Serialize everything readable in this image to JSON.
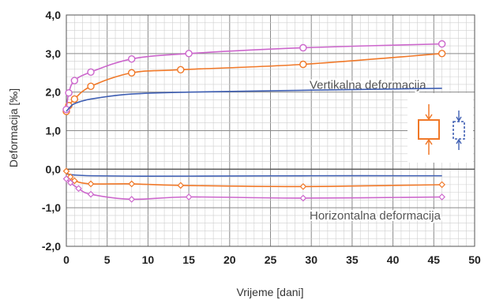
{
  "chart_data": {
    "type": "line",
    "title": "",
    "xlabel": "Vrijeme [dani]",
    "ylabel": "Deformacija [‰]",
    "xlim": [
      0,
      50
    ],
    "ylim": [
      -2.0,
      4.0
    ],
    "x_ticks": [
      "0",
      "5",
      "10",
      "15",
      "20",
      "25",
      "30",
      "35",
      "40",
      "45",
      "50"
    ],
    "y_ticks": [
      "4,0",
      "3,0",
      "2,0",
      "1,0",
      "0,0",
      "-1,0",
      "-2,0"
    ],
    "grid": true,
    "annotations": [
      "Vertikalna deformacija",
      "Horizontalna deformacija"
    ],
    "colors": {
      "orange": "#f07828",
      "pink": "#cc66cc",
      "blue": "#3f5fb3"
    },
    "series": [
      {
        "color": "orange",
        "marker": "circle",
        "smooth": true,
        "x": [
          0,
          0.3,
          1,
          3,
          8,
          14,
          29,
          46
        ],
        "y": [
          1.5,
          1.65,
          1.82,
          2.15,
          2.5,
          2.58,
          2.72,
          3.0
        ]
      },
      {
        "color": "pink",
        "marker": "circle",
        "smooth": true,
        "x": [
          0,
          0.3,
          1,
          3,
          8,
          15,
          29,
          46
        ],
        "y": [
          1.55,
          1.98,
          2.3,
          2.52,
          2.86,
          3.0,
          3.15,
          3.25
        ]
      },
      {
        "color": "blue",
        "marker": "none",
        "smooth": true,
        "x": [
          0,
          0.5,
          1,
          3,
          8,
          15,
          30,
          46
        ],
        "y": [
          1.5,
          1.62,
          1.7,
          1.82,
          1.95,
          2.0,
          2.05,
          2.1
        ]
      },
      {
        "color": "blue",
        "marker": "none",
        "smooth": true,
        "x": [
          0,
          1,
          3,
          8,
          15,
          30,
          46
        ],
        "y": [
          -0.12,
          -0.15,
          -0.17,
          -0.18,
          -0.18,
          -0.17,
          -0.17
        ]
      },
      {
        "color": "orange",
        "marker": "diamond",
        "smooth": true,
        "x": [
          0,
          0.5,
          1,
          3,
          8,
          14,
          29,
          46
        ],
        "y": [
          -0.05,
          -0.2,
          -0.3,
          -0.38,
          -0.38,
          -0.42,
          -0.45,
          -0.4
        ]
      },
      {
        "color": "pink",
        "marker": "diamond",
        "smooth": true,
        "x": [
          0,
          0.5,
          1.5,
          3,
          8,
          15,
          29,
          46
        ],
        "y": [
          -0.25,
          -0.35,
          -0.5,
          -0.65,
          -0.78,
          -0.72,
          -0.75,
          -0.72
        ]
      }
    ],
    "legend": {
      "placement": "right",
      "icons": [
        "orange-specimen-icon",
        "blue-specimen-icon"
      ]
    }
  }
}
